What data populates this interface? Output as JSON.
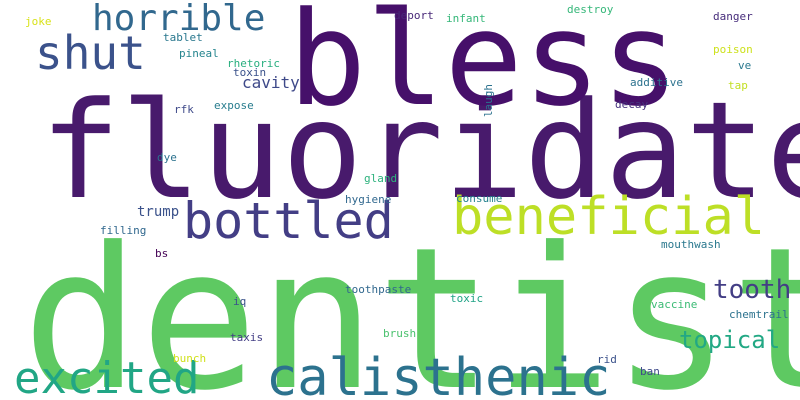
{
  "colors": {
    "background": "#ffffff",
    "purple": "#440154",
    "indigo": "#482878",
    "slate": "#3e4989",
    "steel": "#31688e",
    "blue": "#26828e",
    "teal": "#1f9e89",
    "green": "#35b779",
    "lightgreen": "#6ece58",
    "lime": "#b5de2b",
    "yellow": "#fde725"
  },
  "words": [
    {
      "key": "dentist",
      "text": "dentist",
      "color": "#5ec962"
    },
    {
      "key": "fluoridate",
      "text": "fluoridate",
      "color": "#481a6c"
    },
    {
      "key": "bless",
      "text": "bless",
      "color": "#46106a"
    },
    {
      "key": "beneficial",
      "text": "beneficial",
      "color": "#bddf26"
    },
    {
      "key": "bottled",
      "text": "bottled",
      "color": "#433e85"
    },
    {
      "key": "calisthenic",
      "text": "calisthenic",
      "color": "#2c728e"
    },
    {
      "key": "shut",
      "text": "shut",
      "color": "#3b528b"
    },
    {
      "key": "horrible",
      "text": "horrible",
      "color": "#31688e"
    },
    {
      "key": "excited",
      "text": "excited",
      "color": "#21a685"
    },
    {
      "key": "tooth",
      "text": "tooth",
      "color": "#433e85"
    },
    {
      "key": "topical",
      "text": "topical",
      "color": "#22a884"
    },
    {
      "key": "cavity",
      "text": "cavity",
      "color": "#3e4989"
    },
    {
      "key": "trump",
      "text": "trump",
      "color": "#3b528b"
    },
    {
      "key": "joke",
      "text": "joke",
      "color": "#d8e219"
    },
    {
      "key": "tablet",
      "text": "tablet",
      "color": "#2a788e"
    },
    {
      "key": "pineal",
      "text": "pineal",
      "color": "#25858e"
    },
    {
      "key": "rhetoric",
      "text": "rhetoric",
      "color": "#29af7f"
    },
    {
      "key": "toxin",
      "text": "toxin",
      "color": "#3b528b"
    },
    {
      "key": "deport",
      "text": "deport",
      "color": "#482878"
    },
    {
      "key": "infant",
      "text": "infant",
      "color": "#35b779"
    },
    {
      "key": "destroy",
      "text": "destroy",
      "color": "#35b779"
    },
    {
      "key": "danger",
      "text": "danger",
      "color": "#472d7b"
    },
    {
      "key": "poison",
      "text": "poison",
      "color": "#cde11d"
    },
    {
      "key": "ve",
      "text": "ve",
      "color": "#2a788e"
    },
    {
      "key": "tap",
      "text": "tap",
      "color": "#c2df23"
    },
    {
      "key": "additive",
      "text": "additive",
      "color": "#2c728e"
    },
    {
      "key": "decay",
      "text": "decay",
      "color": "#46337e"
    },
    {
      "key": "laugh",
      "text": "laugh",
      "color": "#2c728e"
    },
    {
      "key": "expose",
      "text": "expose",
      "color": "#287d8e"
    },
    {
      "key": "rfk",
      "text": "rfk",
      "color": "#3e4989"
    },
    {
      "key": "dye",
      "text": "dye",
      "color": "#2c728e"
    },
    {
      "key": "gland",
      "text": "gland",
      "color": "#2db27d"
    },
    {
      "key": "hygiene",
      "text": "hygiene",
      "color": "#31688e"
    },
    {
      "key": "consume",
      "text": "consume",
      "color": "#26828e"
    },
    {
      "key": "filling",
      "text": "filling",
      "color": "#31688e"
    },
    {
      "key": "mouthwash",
      "text": "mouthwash",
      "color": "#2a788e"
    },
    {
      "key": "bs",
      "text": "bs",
      "color": "#440154"
    },
    {
      "key": "toothpaste",
      "text": "toothpaste",
      "color": "#31688e"
    },
    {
      "key": "toxic",
      "text": "toxic",
      "color": "#20a386"
    },
    {
      "key": "vaccine",
      "text": "vaccine",
      "color": "#3bbb75"
    },
    {
      "key": "chemtrail",
      "text": "chemtrail",
      "color": "#2c728e"
    },
    {
      "key": "iq",
      "text": "iq",
      "color": "#3b528b"
    },
    {
      "key": "taxis",
      "text": "taxis",
      "color": "#433e85"
    },
    {
      "key": "brush",
      "text": "brush",
      "color": "#4ac16d"
    },
    {
      "key": "bunch",
      "text": "bunch",
      "color": "#d0e11c"
    },
    {
      "key": "rid",
      "text": "rid",
      "color": "#3b528b"
    },
    {
      "key": "ban",
      "text": "ban",
      "color": "#3e4989"
    }
  ]
}
